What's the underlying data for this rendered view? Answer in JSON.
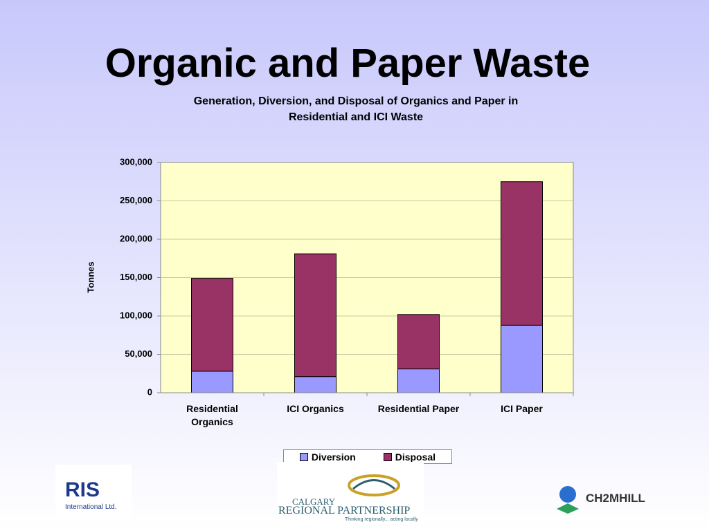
{
  "slide_title": "Organic and Paper Waste",
  "chart_data": {
    "type": "stacked_bar",
    "title": "Generation, Diversion, and Disposal of Organics and Paper in Residential and ICI Waste",
    "y_label": "Tonnes",
    "categories": [
      "Residential Organics",
      "ICI Organics",
      "Residential Paper",
      "ICI Paper"
    ],
    "series": [
      {
        "name": "Diversion",
        "color": "#9999ff",
        "values": [
          28000,
          21000,
          31000,
          88000
        ]
      },
      {
        "name": "Disposal",
        "color": "#993366",
        "values": [
          121000,
          160000,
          71000,
          187000
        ]
      }
    ],
    "ylim": [
      0,
      300000
    ],
    "yticks": [
      0,
      {
        "value": 50000,
        "label": "50,000"
      },
      {
        "value": 100000,
        "label": "100,000"
      },
      {
        "value": 150000,
        "label": "150,000"
      },
      {
        "value": 200000,
        "label": "200,000"
      },
      {
        "value": 250000,
        "label": "250,000"
      },
      {
        "value": 300000,
        "label": "300,000"
      }
    ],
    "grid": true,
    "legend": "bottom",
    "plot_background": "#ffffcc"
  },
  "logos": {
    "ris": "RIS",
    "ris_sub": "International Ltd.",
    "crp_1": "CALGARY",
    "crp_2": "REGIONAL PARTNERSHIP",
    "crp_3": "Thinking regionally... acting locally",
    "ch2m": "CH2MHILL"
  }
}
